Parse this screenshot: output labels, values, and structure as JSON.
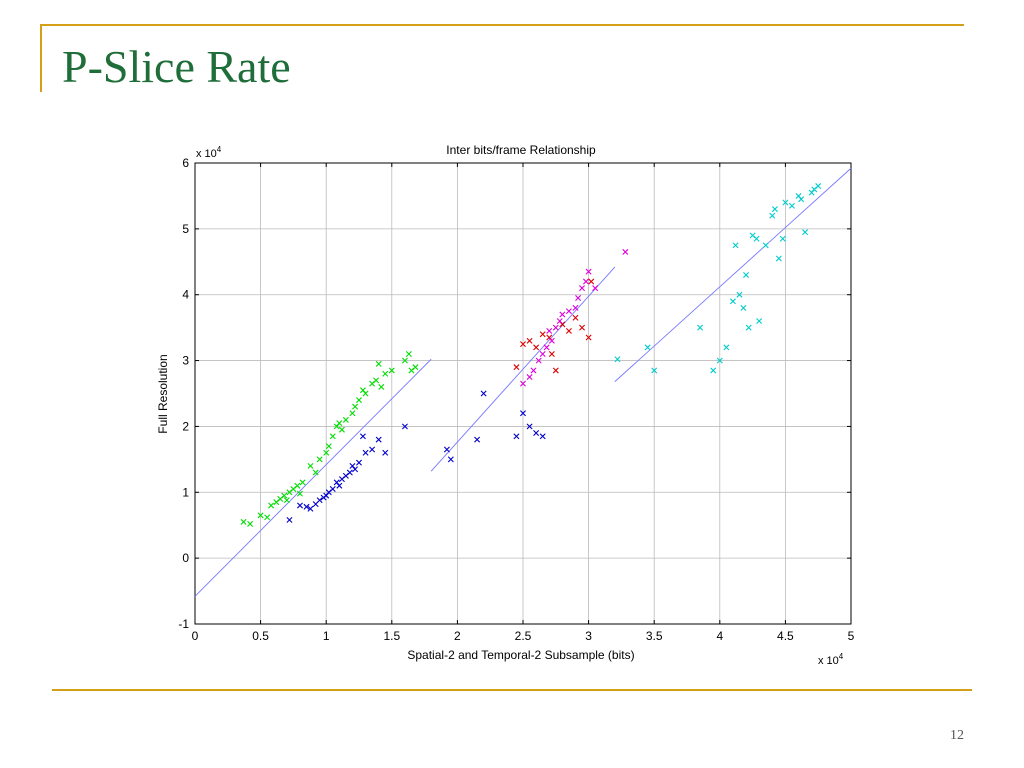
{
  "slide": {
    "title": "P-Slice Rate",
    "page_number": "12"
  },
  "colors": {
    "accent_rule": "#d4a017",
    "title_text": "#1f6e3a"
  },
  "chart_data": {
    "type": "scatter",
    "title": "Inter bits/frame Relationship",
    "xlabel": "Spatial-2 and Temporal-2 Subsample (bits)",
    "ylabel": "Full Resolution",
    "x_scale_label": "x 10",
    "x_scale_exp": "4",
    "y_scale_label": "x 10",
    "y_scale_exp": "4",
    "xlim": [
      0,
      5
    ],
    "ylim": [
      -1,
      6
    ],
    "x_ticks": [
      0,
      0.5,
      1,
      1.5,
      2,
      2.5,
      3,
      3.5,
      4,
      4.5,
      5
    ],
    "y_ticks": [
      -1,
      0,
      1,
      2,
      3,
      4,
      5,
      6
    ],
    "grid": true,
    "marker": "x",
    "series": [
      {
        "color": "#00dd00",
        "points": [
          [
            0.37,
            0.55
          ],
          [
            0.42,
            0.52
          ],
          [
            0.5,
            0.65
          ],
          [
            0.55,
            0.62
          ],
          [
            0.58,
            0.8
          ],
          [
            0.62,
            0.85
          ],
          [
            0.65,
            0.9
          ],
          [
            0.68,
            0.95
          ],
          [
            0.7,
            0.88
          ],
          [
            0.72,
            1.0
          ],
          [
            0.75,
            1.05
          ],
          [
            0.78,
            1.1
          ],
          [
            0.8,
            0.98
          ],
          [
            0.82,
            1.15
          ],
          [
            0.88,
            1.4
          ],
          [
            0.92,
            1.3
          ],
          [
            0.95,
            1.5
          ],
          [
            1.0,
            1.6
          ],
          [
            1.02,
            1.7
          ],
          [
            1.05,
            1.85
          ],
          [
            1.08,
            2.0
          ],
          [
            1.1,
            2.05
          ],
          [
            1.12,
            1.95
          ],
          [
            1.15,
            2.1
          ],
          [
            1.2,
            2.2
          ],
          [
            1.22,
            2.3
          ],
          [
            1.25,
            2.4
          ],
          [
            1.28,
            2.55
          ],
          [
            1.3,
            2.5
          ],
          [
            1.35,
            2.65
          ],
          [
            1.38,
            2.7
          ],
          [
            1.4,
            2.95
          ],
          [
            1.42,
            2.6
          ],
          [
            1.45,
            2.8
          ],
          [
            1.5,
            2.85
          ],
          [
            1.6,
            3.0
          ],
          [
            1.63,
            3.1
          ],
          [
            1.65,
            2.85
          ],
          [
            1.68,
            2.9
          ]
        ]
      },
      {
        "color": "#0000cc",
        "points": [
          [
            0.72,
            0.58
          ],
          [
            0.8,
            0.8
          ],
          [
            0.85,
            0.78
          ],
          [
            0.88,
            0.75
          ],
          [
            0.92,
            0.82
          ],
          [
            0.95,
            0.88
          ],
          [
            0.98,
            0.92
          ],
          [
            1.0,
            0.95
          ],
          [
            1.02,
            1.0
          ],
          [
            1.05,
            1.05
          ],
          [
            1.08,
            1.15
          ],
          [
            1.1,
            1.1
          ],
          [
            1.12,
            1.2
          ],
          [
            1.15,
            1.25
          ],
          [
            1.18,
            1.3
          ],
          [
            1.2,
            1.4
          ],
          [
            1.22,
            1.35
          ],
          [
            1.25,
            1.45
          ],
          [
            1.28,
            1.85
          ],
          [
            1.3,
            1.6
          ],
          [
            1.35,
            1.65
          ],
          [
            1.4,
            1.8
          ],
          [
            1.45,
            1.6
          ],
          [
            1.6,
            2.0
          ],
          [
            1.92,
            1.65
          ],
          [
            1.95,
            1.5
          ],
          [
            2.15,
            1.8
          ],
          [
            2.2,
            2.5
          ],
          [
            2.45,
            1.85
          ],
          [
            2.5,
            2.2
          ],
          [
            2.55,
            2.0
          ],
          [
            2.6,
            1.9
          ],
          [
            2.65,
            1.85
          ]
        ]
      },
      {
        "color": "#dd0000",
        "points": [
          [
            2.45,
            2.9
          ],
          [
            2.5,
            3.25
          ],
          [
            2.55,
            3.3
          ],
          [
            2.6,
            3.2
          ],
          [
            2.65,
            3.4
          ],
          [
            2.7,
            3.35
          ],
          [
            2.72,
            3.1
          ],
          [
            2.75,
            2.85
          ],
          [
            2.8,
            3.55
          ],
          [
            2.85,
            3.45
          ],
          [
            2.9,
            3.65
          ],
          [
            2.95,
            3.5
          ],
          [
            3.0,
            3.35
          ],
          [
            3.02,
            4.2
          ]
        ]
      },
      {
        "color": "#dd00dd",
        "points": [
          [
            2.5,
            2.65
          ],
          [
            2.55,
            2.75
          ],
          [
            2.58,
            2.85
          ],
          [
            2.62,
            3.0
          ],
          [
            2.65,
            3.1
          ],
          [
            2.68,
            3.2
          ],
          [
            2.7,
            3.45
          ],
          [
            2.72,
            3.3
          ],
          [
            2.75,
            3.5
          ],
          [
            2.78,
            3.6
          ],
          [
            2.8,
            3.7
          ],
          [
            2.85,
            3.75
          ],
          [
            2.9,
            3.8
          ],
          [
            2.92,
            3.95
          ],
          [
            2.95,
            4.1
          ],
          [
            2.98,
            4.2
          ],
          [
            3.0,
            4.35
          ],
          [
            3.05,
            4.1
          ],
          [
            3.28,
            4.65
          ]
        ]
      },
      {
        "color": "#00cccc",
        "points": [
          [
            3.22,
            3.02
          ],
          [
            3.45,
            3.2
          ],
          [
            3.5,
            2.85
          ],
          [
            3.85,
            3.5
          ],
          [
            3.95,
            2.85
          ],
          [
            4.0,
            3.0
          ],
          [
            4.05,
            3.2
          ],
          [
            4.1,
            3.9
          ],
          [
            4.12,
            4.75
          ],
          [
            4.15,
            4.0
          ],
          [
            4.18,
            3.8
          ],
          [
            4.2,
            4.3
          ],
          [
            4.22,
            3.5
          ],
          [
            4.25,
            4.9
          ],
          [
            4.28,
            4.85
          ],
          [
            4.3,
            3.6
          ],
          [
            4.35,
            4.75
          ],
          [
            4.4,
            5.2
          ],
          [
            4.42,
            5.3
          ],
          [
            4.45,
            4.55
          ],
          [
            4.48,
            4.85
          ],
          [
            4.5,
            5.4
          ],
          [
            4.55,
            5.35
          ],
          [
            4.6,
            5.5
          ],
          [
            4.62,
            5.45
          ],
          [
            4.65,
            4.95
          ],
          [
            4.7,
            5.55
          ],
          [
            4.72,
            5.6
          ],
          [
            4.75,
            5.65
          ]
        ]
      }
    ],
    "fit_lines": [
      {
        "color": "#7777ff",
        "x": [
          0,
          1.8
        ],
        "y": [
          -0.58,
          3.02
        ]
      },
      {
        "color": "#7777ff",
        "x": [
          1.8,
          3.2
        ],
        "y": [
          1.32,
          4.42
        ]
      },
      {
        "color": "#7777ff",
        "x": [
          3.2,
          5.0
        ],
        "y": [
          2.68,
          5.92
        ]
      }
    ]
  }
}
